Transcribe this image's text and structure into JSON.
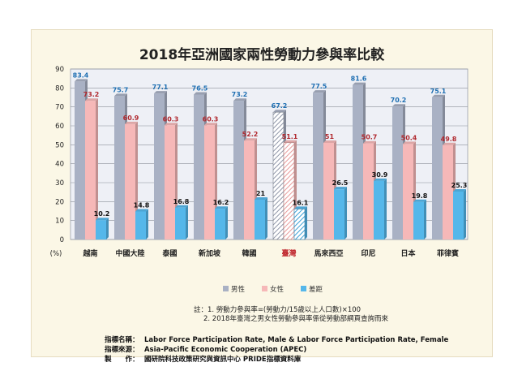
{
  "chart_data": {
    "type": "bar",
    "title": "2018年亞洲國家兩性勞動力參與率比較",
    "ylabel": "(%)",
    "ylim": [
      0,
      90
    ],
    "yticks": [
      0,
      10,
      20,
      30,
      40,
      50,
      60,
      70,
      80,
      90
    ],
    "grid": true,
    "legend_position": "bottom",
    "categories": [
      "越南",
      "中國大陸",
      "泰國",
      "新加坡",
      "韓國",
      "臺灣",
      "馬來西亞",
      "印尼",
      "日本",
      "菲律賓"
    ],
    "highlight_category": "臺灣",
    "series": [
      {
        "name": "男性",
        "color": "#a9b1c4",
        "label_color": "#1f6fb2",
        "values": [
          83.4,
          75.7,
          77.1,
          76.5,
          73.2,
          67.2,
          77.5,
          81.6,
          70.2,
          75.1
        ]
      },
      {
        "name": "女性",
        "color": "#f6b8b8",
        "label_color": "#b0282e",
        "values": [
          73.2,
          60.9,
          60.3,
          60.3,
          52.2,
          51.1,
          51,
          50.7,
          50.4,
          49.8
        ]
      },
      {
        "name": "差距",
        "color": "#55b7ea",
        "label_color": "#111111",
        "values": [
          10.2,
          14.8,
          16.8,
          16.2,
          21,
          16.1,
          26.5,
          30.9,
          19.8,
          25.3
        ]
      }
    ]
  },
  "notes": [
    "註：1. 勞動力參與率=(勞動力/15歲以上人口數)×100",
    "2. 2018年臺灣之男女性勞動參與率係從勞動部網頁查詢而來"
  ],
  "info": {
    "name_label": "指標名稱：",
    "name_value": "Labor Force Participation Rate, Male & Labor Force Participation Rate, Female",
    "source_label": "指標來源：",
    "source_value": "Asia-Pacific Economic Cooperation (APEC)",
    "maker_label": "製　　作：",
    "maker_value": "國研院科技政策研究與資訊中心 PRIDE指標資料庫"
  }
}
